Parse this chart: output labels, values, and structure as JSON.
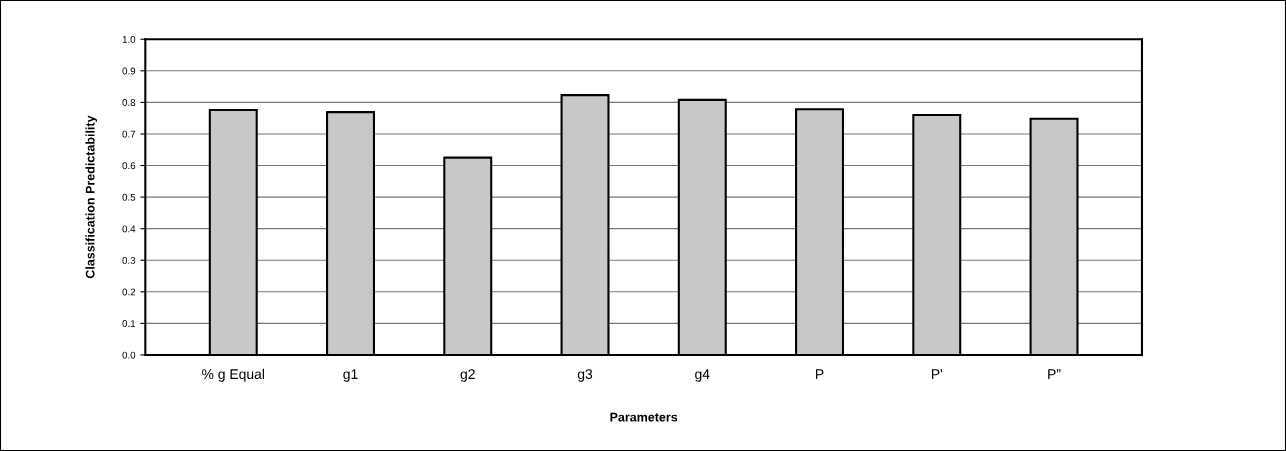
{
  "chart_data": {
    "type": "bar",
    "xlabel": "Parameters",
    "ylabel": "Classification Predictability",
    "categories": [
      "% g Equal",
      "g1",
      "g2",
      "g3",
      "g4",
      "P",
      "P'",
      "P”"
    ],
    "values": [
      0.776,
      0.769,
      0.625,
      0.823,
      0.808,
      0.778,
      0.76,
      0.748
    ],
    "color": "#c8c8c8",
    "ylim": [
      0,
      1
    ],
    "yticks": [
      {
        "value": 0,
        "label": "0.0"
      },
      0.1,
      0.2,
      0.3,
      0.4,
      0.5,
      0.6,
      0.7,
      0.8,
      0.9,
      {
        "value": 1,
        "label": "1.0"
      }
    ],
    "grid": "y",
    "legend": false
  }
}
